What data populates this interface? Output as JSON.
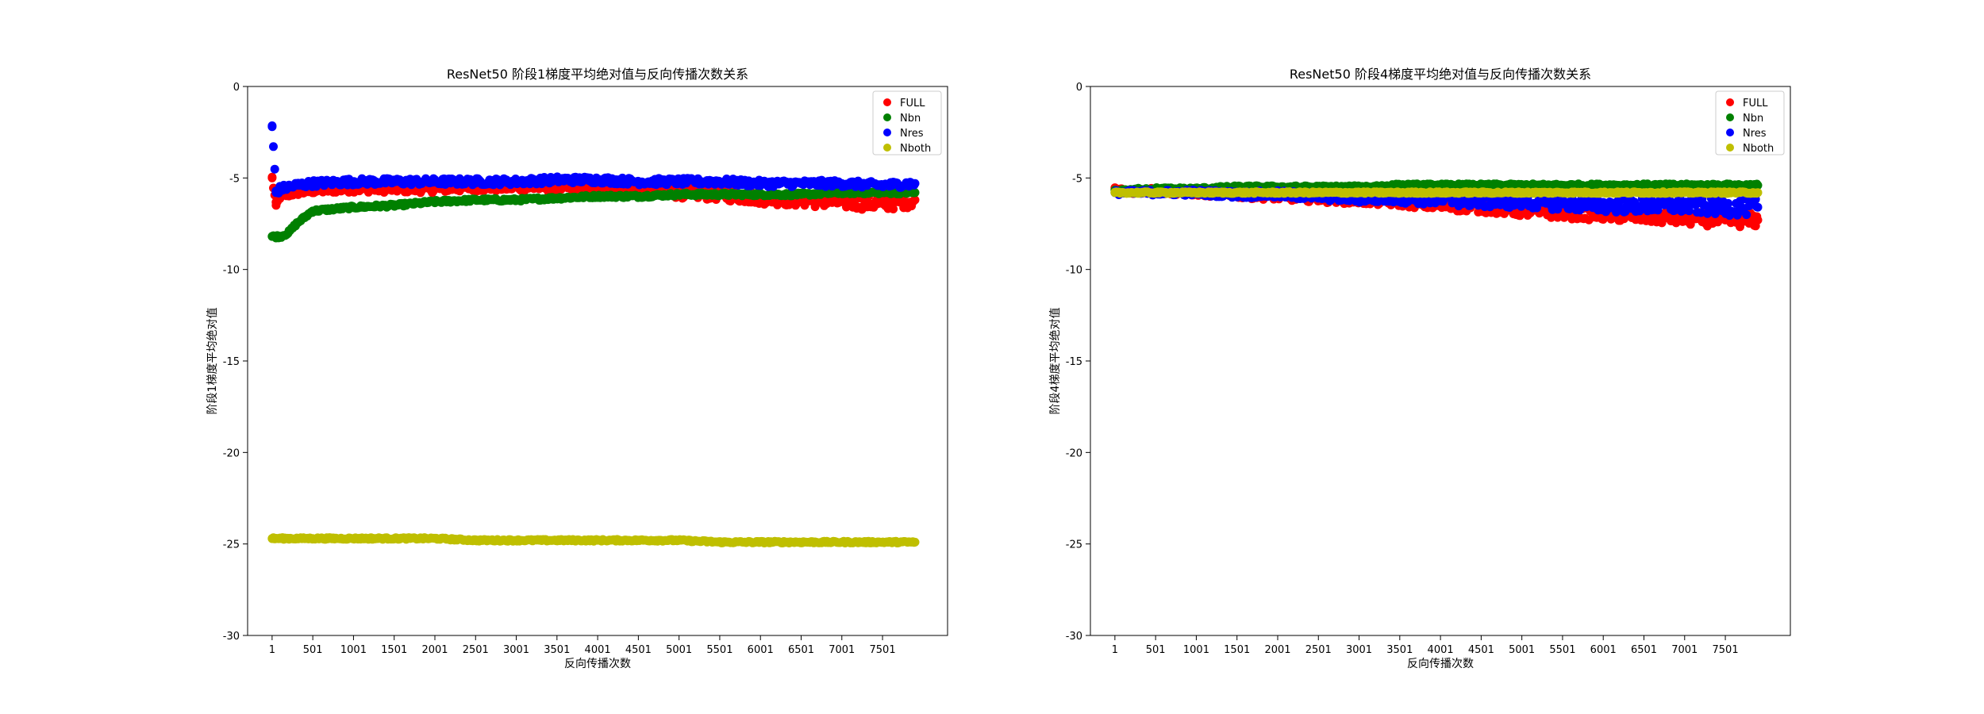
{
  "chart_data": [
    {
      "type": "scatter",
      "title": "ResNet50 阶段1梯度平均绝对值与反向传播次数关系",
      "xlabel": "反向传播次数",
      "ylabel": "阶段1梯度平均绝对值",
      "xlim": [
        -300,
        8300
      ],
      "ylim": [
        -30,
        0
      ],
      "xticks": [
        1,
        501,
        1001,
        1501,
        2001,
        2501,
        3001,
        3501,
        4001,
        4501,
        5001,
        5501,
        6001,
        6501,
        7001,
        7501
      ],
      "xtick_labels": [
        "1",
        "501",
        "1001",
        "1501",
        "2001",
        "2501",
        "3001",
        "3501",
        "4001",
        "4501",
        "5001",
        "5501",
        "6001",
        "6501",
        "7001",
        "7501"
      ],
      "yticks": [
        0,
        -5,
        -10,
        -15,
        -20,
        -25,
        -30
      ],
      "ytick_labels": [
        "0",
        "-5",
        "-10",
        "-15",
        "-20",
        "-25",
        "-30"
      ],
      "legend_position": "top-right",
      "x": [
        1,
        50,
        100,
        200,
        300,
        500,
        1000,
        1500,
        2000,
        2500,
        3000,
        3500,
        4000,
        4500,
        5000,
        5500,
        6000,
        6500,
        7000,
        7500,
        7900
      ],
      "series": [
        {
          "name": "FULL",
          "color": "#ff0000",
          "values": [
            -5.0,
            -6.5,
            -6.0,
            -5.9,
            -5.8,
            -5.7,
            -5.6,
            -5.6,
            -5.6,
            -5.5,
            -5.5,
            -5.5,
            -5.6,
            -5.7,
            -5.8,
            -5.9,
            -6.1,
            -6.2,
            -6.3,
            -6.4,
            -6.2
          ]
        },
        {
          "name": "Nbn",
          "color": "#008000",
          "values": [
            -8.2,
            -8.2,
            -8.2,
            -8.0,
            -7.5,
            -6.8,
            -6.6,
            -6.5,
            -6.3,
            -6.2,
            -6.2,
            -6.1,
            -6.0,
            -6.0,
            -5.9,
            -5.9,
            -5.9,
            -5.9,
            -5.8,
            -5.8,
            -5.8
          ]
        },
        {
          "name": "Nres",
          "color": "#0000ff",
          "values": [
            -2.2,
            -5.8,
            -5.6,
            -5.5,
            -5.4,
            -5.3,
            -5.2,
            -5.2,
            -5.2,
            -5.2,
            -5.2,
            -5.1,
            -5.1,
            -5.2,
            -5.2,
            -5.2,
            -5.3,
            -5.3,
            -5.3,
            -5.4,
            -5.3
          ]
        },
        {
          "name": "Nboth",
          "color": "#bfbf00",
          "values": [
            -24.7,
            -24.7,
            -24.7,
            -24.7,
            -24.7,
            -24.7,
            -24.7,
            -24.7,
            -24.7,
            -24.8,
            -24.8,
            -24.8,
            -24.8,
            -24.8,
            -24.8,
            -24.9,
            -24.9,
            -24.9,
            -24.9,
            -24.9,
            -24.9
          ]
        }
      ]
    },
    {
      "type": "scatter",
      "title": "ResNet50 阶段4梯度平均绝对值与反向传播次数关系",
      "xlabel": "反向传播次数",
      "ylabel": "阶段4梯度平均绝对值",
      "xlim": [
        -300,
        8300
      ],
      "ylim": [
        -30,
        0
      ],
      "xticks": [
        1,
        501,
        1001,
        1501,
        2001,
        2501,
        3001,
        3501,
        4001,
        4501,
        5001,
        5501,
        6001,
        6501,
        7001,
        7501
      ],
      "xtick_labels": [
        "1",
        "501",
        "1001",
        "1501",
        "2001",
        "2501",
        "3001",
        "3501",
        "4001",
        "4501",
        "5001",
        "5501",
        "6001",
        "6501",
        "7001",
        "7501"
      ],
      "yticks": [
        0,
        -5,
        -10,
        -15,
        -20,
        -25,
        -30
      ],
      "ytick_labels": [
        "0",
        "-5",
        "-10",
        "-15",
        "-20",
        "-25",
        "-30"
      ],
      "legend_position": "top-right",
      "x": [
        1,
        50,
        100,
        200,
        300,
        500,
        1000,
        1500,
        2000,
        2500,
        3000,
        3500,
        4000,
        4500,
        5000,
        5500,
        6000,
        6500,
        7000,
        7500,
        7900
      ],
      "series": [
        {
          "name": "FULL",
          "color": "#ff0000",
          "values": [
            -5.6,
            -5.7,
            -5.7,
            -5.7,
            -5.7,
            -5.7,
            -5.8,
            -5.9,
            -6.0,
            -6.1,
            -6.2,
            -6.3,
            -6.5,
            -6.6,
            -6.8,
            -6.9,
            -7.0,
            -7.1,
            -7.2,
            -7.3,
            -7.3
          ]
        },
        {
          "name": "Nbn",
          "color": "#008000",
          "values": [
            -5.7,
            -5.7,
            -5.7,
            -5.7,
            -5.6,
            -5.6,
            -5.6,
            -5.5,
            -5.5,
            -5.5,
            -5.5,
            -5.4,
            -5.4,
            -5.4,
            -5.4,
            -5.4,
            -5.4,
            -5.4,
            -5.4,
            -5.4,
            -5.4
          ]
        },
        {
          "name": "Nres",
          "color": "#0000ff",
          "values": [
            -5.8,
            -5.8,
            -5.8,
            -5.8,
            -5.8,
            -5.8,
            -5.8,
            -5.9,
            -5.9,
            -6.0,
            -6.1,
            -6.1,
            -6.2,
            -6.3,
            -6.3,
            -6.4,
            -6.5,
            -6.5,
            -6.5,
            -6.6,
            -6.6
          ]
        },
        {
          "name": "Nboth",
          "color": "#bfbf00",
          "values": [
            -5.8,
            -5.8,
            -5.8,
            -5.8,
            -5.8,
            -5.8,
            -5.8,
            -5.8,
            -5.8,
            -5.8,
            -5.8,
            -5.8,
            -5.8,
            -5.8,
            -5.8,
            -5.8,
            -5.8,
            -5.8,
            -5.8,
            -5.8,
            -5.8
          ]
        }
      ]
    }
  ]
}
